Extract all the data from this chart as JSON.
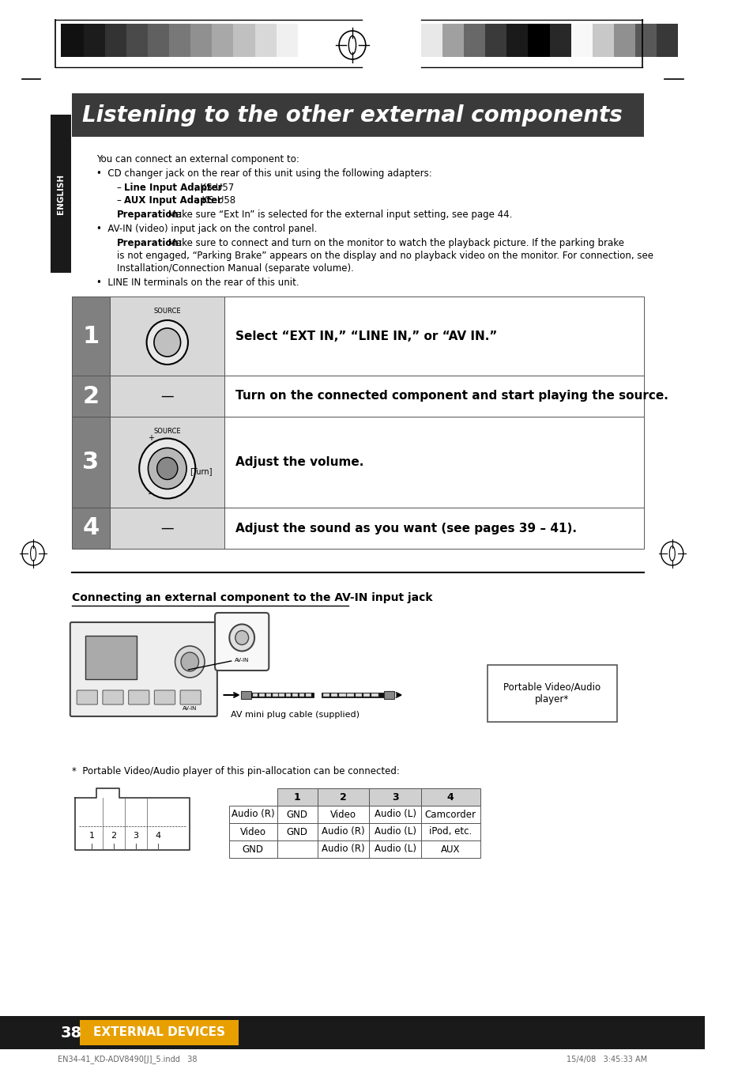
{
  "page_bg": "#ffffff",
  "header_bar_color": "#3a3a3a",
  "header_text": "Listening to the other external components",
  "header_text_color": "#ffffff",
  "english_tab_color": "#1a1a1a",
  "english_text": "ENGLISH",
  "steps": [
    {
      "num": "1",
      "desc": "Select “EXT IN,” “LINE IN,” or “AV IN.”",
      "has_knob": true,
      "knob_label": "SOURCE"
    },
    {
      "num": "2",
      "desc": "Turn on the connected component and start playing the source.",
      "has_knob": false
    },
    {
      "num": "3",
      "desc": "Adjust the volume.",
      "has_knob": true,
      "knob_label": "SOURCE",
      "knob_turn": true
    },
    {
      "num": "4",
      "desc": "Adjust the sound as you want (see pages 39 – 41).",
      "has_knob": false
    }
  ],
  "step_num_bg": "#808080",
  "step_num_text_color": "#ffffff",
  "step_cell_bg": "#d8d8d8",
  "step_desc_bg": "#ffffff",
  "section2_title": "Connecting an external component to the AV-IN input jack",
  "cable_label": "AV mini plug cable (supplied)",
  "portable_label": "Portable Video/Audio\nplayer*",
  "footnote": "*  Portable Video/Audio player of this pin-allocation can be connected:",
  "table_headers": [
    "1",
    "2",
    "3",
    "4"
  ],
  "table_rows": [
    [
      "Audio (R)",
      "GND",
      "Video",
      "Audio (L)",
      "Camcorder"
    ],
    [
      "Video",
      "GND",
      "Audio (R)",
      "Audio (L)",
      "iPod, etc."
    ],
    [
      "GND",
      "",
      "Audio (R)",
      "Audio (L)",
      "AUX"
    ]
  ],
  "footer_bg": "#1a1a1a",
  "footer_text": "38",
  "footer_label": "EXTERNAL DEVICES",
  "footer_label_bg": "#e8a000",
  "bottom_left": "EN34-41_KD-ADV8490[J]_5.indd   38",
  "bottom_right": "15/4/08   3:45:33 AM"
}
